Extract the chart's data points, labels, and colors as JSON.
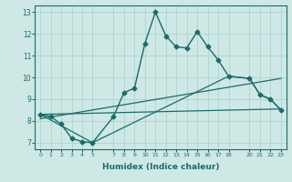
{
  "xlabel": "Humidex (Indice chaleur)",
  "ylabel": "",
  "background_color": "#cde8e5",
  "grid_color": "#aacfcc",
  "line_color": "#1a6b6b",
  "xlim": [
    -0.5,
    23.5
  ],
  "ylim": [
    6.7,
    13.3
  ],
  "xticks": [
    0,
    1,
    2,
    3,
    4,
    5,
    7,
    8,
    9,
    10,
    11,
    12,
    13,
    14,
    15,
    16,
    17,
    18,
    20,
    21,
    22,
    23
  ],
  "yticks": [
    7,
    8,
    9,
    10,
    11,
    12,
    13
  ],
  "series": [
    {
      "x": [
        0,
        1,
        2,
        3,
        4,
        5,
        7,
        8,
        9,
        10,
        11,
        12,
        13,
        14,
        15,
        16,
        17,
        18,
        20,
        21,
        22,
        23
      ],
      "y": [
        8.3,
        8.2,
        7.85,
        7.2,
        7.05,
        7.0,
        8.2,
        9.3,
        9.5,
        11.55,
        13.0,
        11.9,
        11.4,
        11.35,
        12.1,
        11.4,
        10.8,
        10.05,
        9.95,
        9.2,
        9.0,
        8.5
      ],
      "marker": "D",
      "markersize": 2.5,
      "linewidth": 1.0
    },
    {
      "x": [
        0,
        23
      ],
      "y": [
        8.3,
        8.55
      ],
      "marker": null,
      "markersize": 0,
      "linewidth": 0.9
    },
    {
      "x": [
        0,
        23
      ],
      "y": [
        8.1,
        9.95
      ],
      "marker": null,
      "markersize": 0,
      "linewidth": 0.9
    },
    {
      "x": [
        0,
        5,
        18,
        20,
        21,
        22,
        23
      ],
      "y": [
        8.3,
        7.0,
        10.05,
        9.95,
        9.2,
        9.0,
        8.5
      ],
      "marker": null,
      "markersize": 0,
      "linewidth": 0.9
    }
  ]
}
